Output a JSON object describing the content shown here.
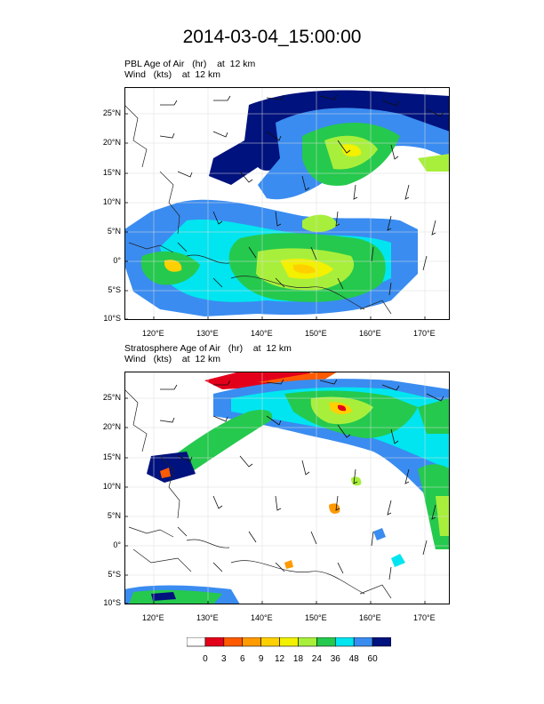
{
  "figure": {
    "title": "2014-03-04_15:00:00"
  },
  "panels": [
    {
      "field_label": "PBL Age of Air   (hr)    at  12 km",
      "wind_label": "Wind   (kts)    at  12 km"
    },
    {
      "field_label": "Stratosphere Age of Air   (hr)    at  12 km",
      "wind_label": "Wind   (kts)    at  12 km"
    }
  ],
  "axes": {
    "lat_ticks": [
      "25°N",
      "20°N",
      "15°N",
      "10°N",
      "5°N",
      "0°",
      "5°S",
      "10°S"
    ],
    "lon_ticks": [
      "120°E",
      "130°E",
      "140°E",
      "150°E",
      "160°E",
      "170°E"
    ]
  },
  "colorbar": {
    "labels": [
      "0",
      "3",
      "6",
      "9",
      "12",
      "18",
      "24",
      "36",
      "48",
      "60"
    ],
    "colors": [
      "#ffffff",
      "#e3001b",
      "#ff5a00",
      "#ff9a00",
      "#ffd000",
      "#f3f000",
      "#a8ef3c",
      "#25c94d",
      "#00e5f0",
      "#3a8cf0",
      "#00127d"
    ]
  }
}
